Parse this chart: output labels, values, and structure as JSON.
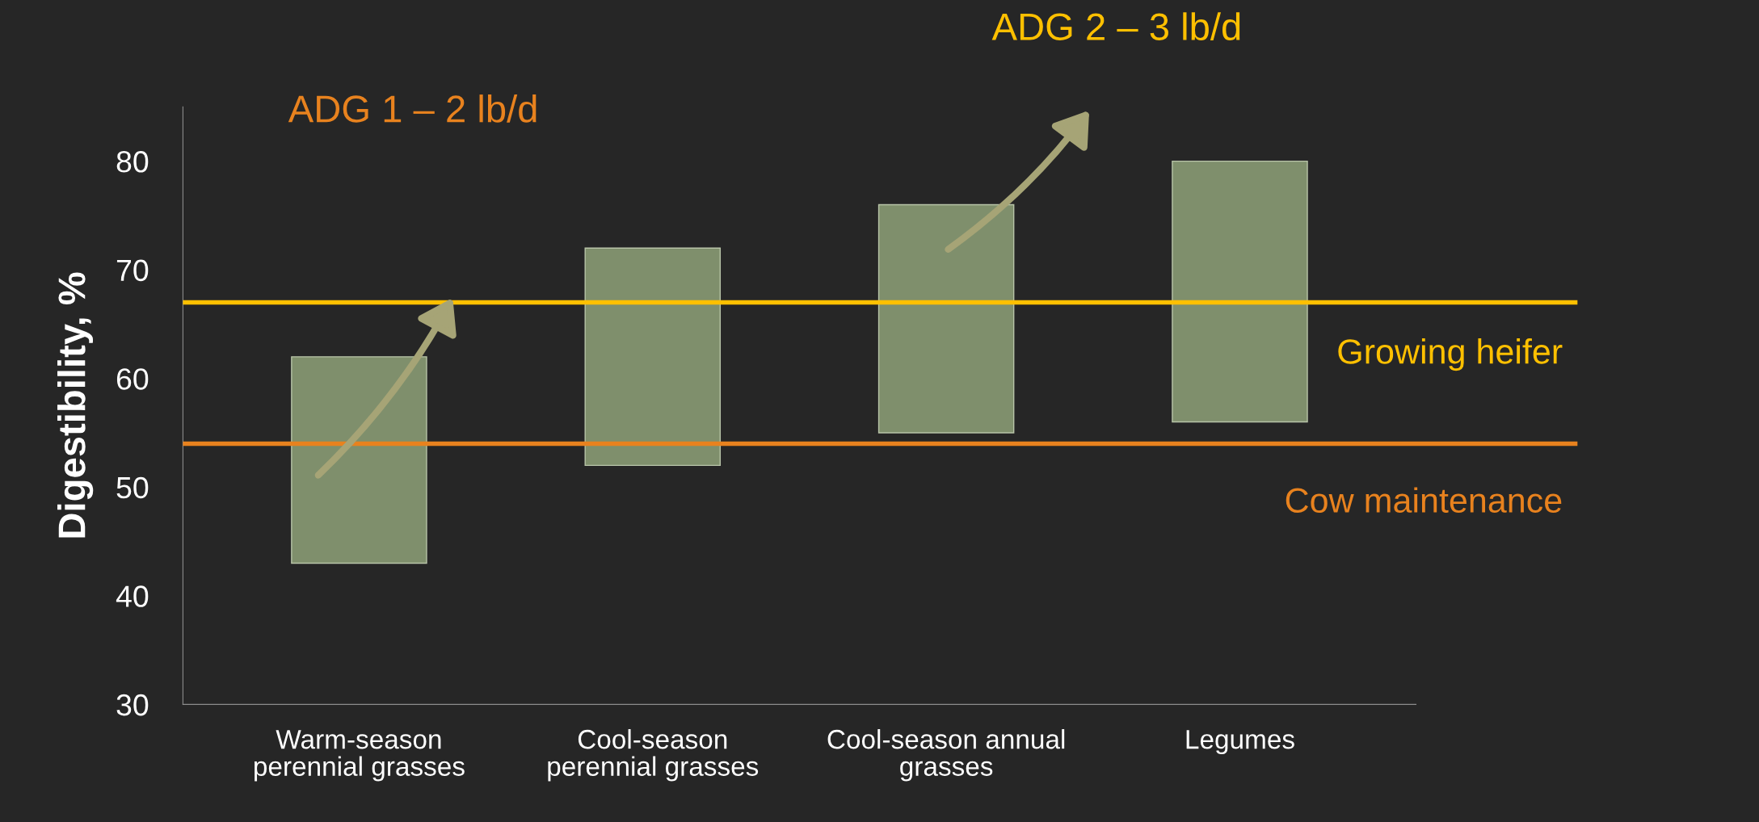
{
  "chart_data": {
    "type": "bar",
    "categories": [
      "Warm-season\nperennial grasses",
      "Cool-season\nperennial grasses",
      "Cool-season annual\ngrasses",
      "Legumes"
    ],
    "base": [
      43,
      52,
      55,
      56
    ],
    "values": [
      19,
      20,
      21,
      24
    ],
    "color": "#7f8f6c",
    "ylabel": "Digestibility, %",
    "ylim": [
      30,
      85
    ],
    "yticks": [
      30,
      40,
      50,
      60,
      70,
      80
    ],
    "ref_lines": [
      {
        "axis": "y",
        "value": 67,
        "label": "Growing heifer",
        "color": "#ffc000"
      },
      {
        "axis": "y",
        "value": 54,
        "label": "Cow maintenance",
        "color": "#e8821e"
      }
    ],
    "annotations": [
      "ADG 1 – 2 lb/d",
      "ADG 2 – 3 lb/d"
    ],
    "grid": false,
    "legend": false
  }
}
